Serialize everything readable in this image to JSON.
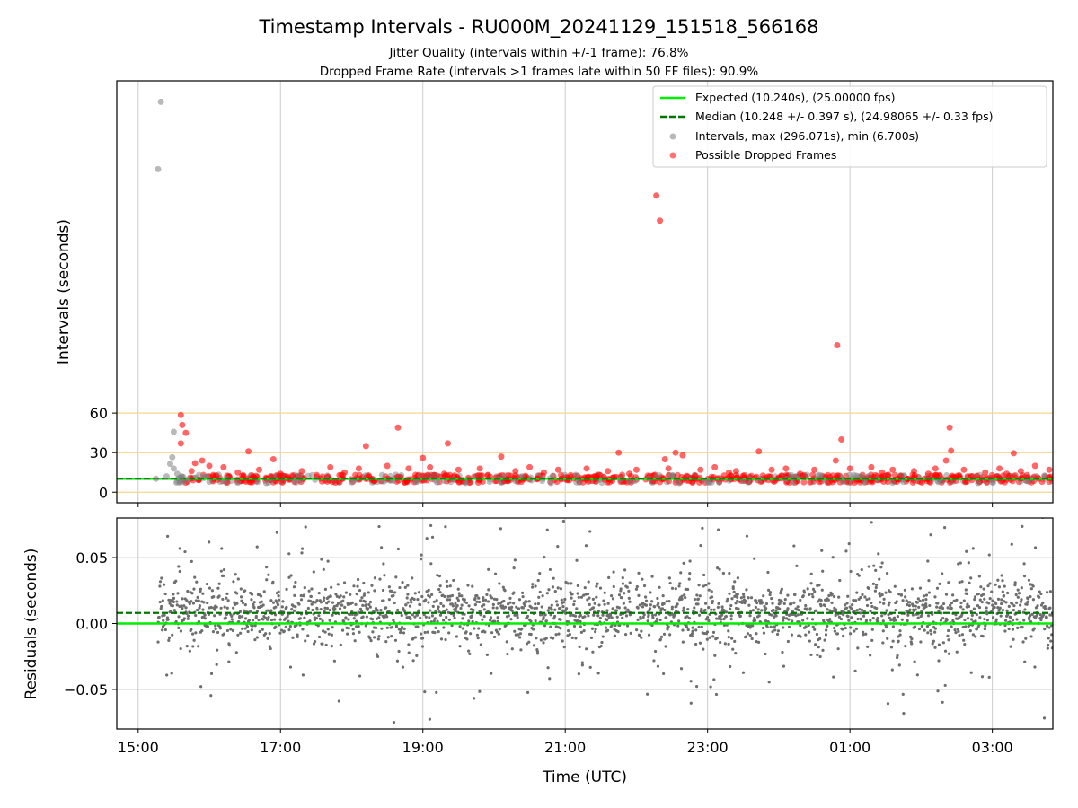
{
  "title": "Timestamp Intervals - RU000M_20241129_151518_566168",
  "subtitle1": "Jitter Quality (intervals within +/-1 frame): 76.8%",
  "subtitle2": "Dropped Frame Rate (intervals >1 frames late within 50 FF files): 90.9%",
  "colors": {
    "expected": "#00ee00",
    "median": "#007700",
    "intervals": "#808080",
    "dropped": "#ff0000",
    "threshold": "#f5d78a",
    "grid": "#cccccc"
  },
  "chart_data": [
    {
      "type": "scatter",
      "ylabel": "Intervals (seconds)",
      "xlabel": "",
      "x_unit": "hours since 00:00 UTC of start day (15:00 .. 03:00 next day)",
      "xlim": [
        14.7,
        27.85
      ],
      "ylim": [
        -8,
        312
      ],
      "yticks": [
        0,
        30,
        60
      ],
      "threshold_lines": [
        0,
        30,
        60
      ],
      "grid": true,
      "legend_position": "top-right",
      "legend": [
        {
          "key": "expected",
          "label": "Expected (10.240s), (25.00000 fps)"
        },
        {
          "key": "median",
          "label": "Median (10.248 +/- 0.397 s), (24.98065 +/- 0.33 fps)"
        },
        {
          "key": "intervals",
          "label": "Intervals, max (296.071s), min (6.700s)"
        },
        {
          "key": "dropped",
          "label": "Possible Dropped Frames"
        }
      ],
      "expected_value": 10.24,
      "median_value": 10.248,
      "baseline_value": 10.24,
      "series": [
        {
          "name": "Intervals",
          "marker": "gray",
          "points": [
            [
              15.32,
              296.1
            ],
            [
              15.28,
              245
            ],
            [
              15.5,
              45.8
            ],
            [
              15.48,
              26.5
            ],
            [
              15.45,
              21.5
            ],
            [
              15.5,
              18
            ],
            [
              15.55,
              14
            ],
            [
              15.6,
              11
            ],
            [
              15.4,
              12
            ],
            [
              15.25,
              10.2
            ],
            [
              15.7,
              9.5
            ],
            [
              16.0,
              8
            ],
            [
              16.4,
              7.2
            ],
            [
              17.2,
              8.5
            ],
            [
              18.0,
              7.5
            ],
            [
              18.9,
              8
            ],
            [
              19.6,
              7
            ],
            [
              20.3,
              8.5
            ],
            [
              21.2,
              7.5
            ],
            [
              21.9,
              8.5
            ],
            [
              22.6,
              7
            ],
            [
              23.5,
              8.5
            ],
            [
              24.2,
              7.5
            ],
            [
              24.9,
              8
            ],
            [
              25.6,
              7.2
            ],
            [
              26.3,
              8.5
            ],
            [
              27.0,
              7.5
            ],
            [
              27.5,
              8.2
            ],
            [
              16.8,
              7
            ],
            [
              19.2,
              7.5
            ],
            [
              20.8,
              7
            ],
            [
              23.0,
              8
            ],
            [
              25.2,
              7.5
            ],
            [
              26.8,
              7
            ]
          ]
        },
        {
          "name": "Possible Dropped Frames",
          "marker": "red",
          "points": [
            [
              22.28,
              225
            ],
            [
              22.33,
              206
            ],
            [
              24.82,
              111.5
            ],
            [
              15.6,
              58.5
            ],
            [
              15.62,
              51
            ],
            [
              15.67,
              45
            ],
            [
              15.6,
              37
            ],
            [
              18.65,
              49
            ],
            [
              26.4,
              49
            ],
            [
              26.42,
              31.5
            ],
            [
              18.2,
              35
            ],
            [
              19.35,
              37
            ],
            [
              24.88,
              40
            ],
            [
              23.72,
              31
            ],
            [
              27.3,
              29.5
            ],
            [
              16.55,
              31
            ],
            [
              21.75,
              30
            ],
            [
              22.55,
              30
            ],
            [
              22.65,
              28
            ],
            [
              22.4,
              25
            ],
            [
              19.0,
              26
            ],
            [
              20.1,
              27
            ],
            [
              16.9,
              25
            ],
            [
              24.8,
              24
            ],
            [
              26.35,
              24
            ],
            [
              27.6,
              20
            ],
            [
              15.8,
              22
            ],
            [
              15.9,
              24
            ],
            [
              16.0,
              20
            ],
            [
              16.2,
              19
            ],
            [
              16.7,
              17
            ],
            [
              17.3,
              16
            ],
            [
              17.7,
              19
            ],
            [
              18.1,
              18
            ],
            [
              18.5,
              20
            ],
            [
              18.8,
              18
            ],
            [
              19.1,
              19
            ],
            [
              19.5,
              17
            ],
            [
              19.8,
              18
            ],
            [
              20.3,
              16
            ],
            [
              20.5,
              19
            ],
            [
              20.9,
              17
            ],
            [
              21.3,
              18
            ],
            [
              21.6,
              16
            ],
            [
              22.0,
              17
            ],
            [
              22.45,
              18
            ],
            [
              22.9,
              17
            ],
            [
              23.1,
              19
            ],
            [
              23.4,
              16
            ],
            [
              23.9,
              17
            ],
            [
              24.1,
              18
            ],
            [
              24.5,
              17
            ],
            [
              25.0,
              18
            ],
            [
              25.3,
              19
            ],
            [
              25.6,
              17
            ],
            [
              25.9,
              16
            ],
            [
              26.2,
              18
            ],
            [
              26.6,
              17
            ],
            [
              26.9,
              15
            ],
            [
              27.1,
              18
            ],
            [
              27.4,
              16
            ],
            [
              27.8,
              17
            ],
            [
              15.75,
              16
            ],
            [
              16.4,
              15
            ],
            [
              17.0,
              14
            ],
            [
              17.9,
              15
            ],
            [
              19.3,
              14
            ],
            [
              20.7,
              15
            ],
            [
              21.9,
              14
            ],
            [
              23.3,
              15
            ],
            [
              24.3,
              14
            ],
            [
              25.45,
              15
            ],
            [
              26.1,
              14
            ],
            [
              27.2,
              14
            ]
          ]
        }
      ]
    },
    {
      "type": "scatter",
      "ylabel": "Residuals (seconds)",
      "xlabel": "Time (UTC)",
      "xlim": [
        14.7,
        27.85
      ],
      "ylim": [
        -0.08,
        0.08
      ],
      "yticks": [
        -0.05,
        0.0,
        0.05
      ],
      "ytick_labels": [
        "−0.05",
        "0.00",
        "0.05"
      ],
      "xticks": [
        15,
        17,
        19,
        21,
        23,
        25,
        27
      ],
      "xtick_labels": [
        "15:00",
        "17:00",
        "19:00",
        "21:00",
        "23:00",
        "01:00",
        "03:00"
      ],
      "grid": true,
      "expected_value": 0.0,
      "median_value": 0.008,
      "residual_model": {
        "n_points": 2300,
        "x_start": 15.28,
        "x_end": 27.85,
        "gap": [
          21.93,
          22.0
        ],
        "center": 0.008,
        "core_sigma": 0.012,
        "tail_sigma": 0.035,
        "tail_fraction": 0.18
      }
    }
  ]
}
